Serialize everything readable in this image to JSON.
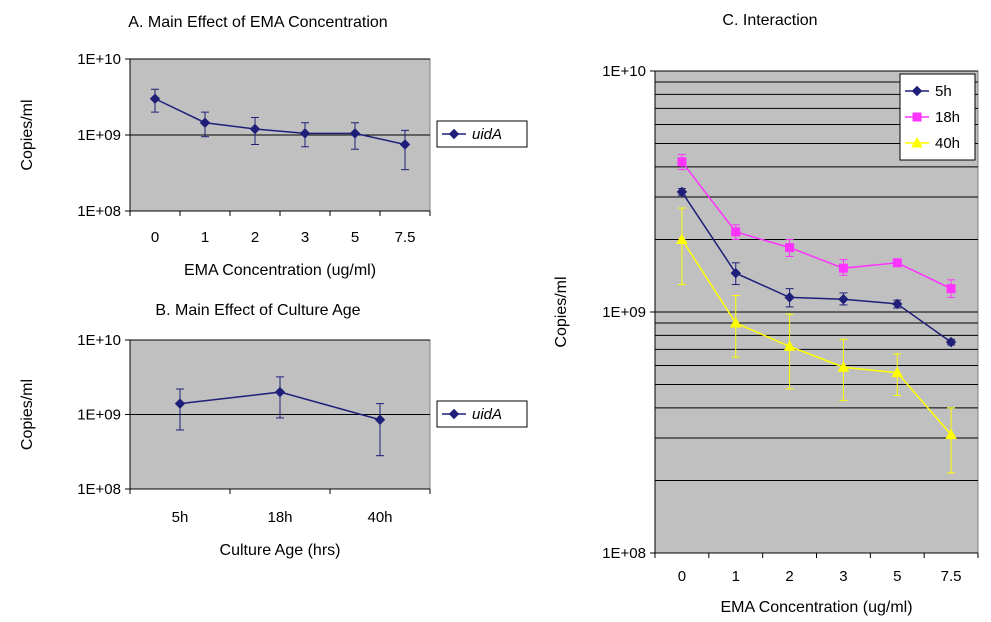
{
  "chart_data": [
    {
      "id": "A",
      "type": "line",
      "title": "A. Main Effect of EMA Concentration",
      "xlabel": "EMA Concentration (ug/ml)",
      "ylabel": "Copies/ml",
      "y_scale": "log",
      "ylim": [
        100000000,
        10000000000
      ],
      "y_ticks": [
        100000000,
        1000000000,
        10000000000
      ],
      "y_tick_labels": [
        "1E+08",
        "1E+09",
        "1E+10"
      ],
      "categories": [
        "0",
        "1",
        "2",
        "3",
        "5",
        "7.5"
      ],
      "grid": "major-y",
      "legend": "right",
      "plot_bg": "#c0c0c0",
      "series": [
        {
          "name": "uidA",
          "color": "#1f1f7a",
          "marker": "diamond",
          "values": [
            3000000000,
            1450000000,
            1200000000,
            1050000000,
            1050000000,
            750000000
          ],
          "err_low": [
            2000000000,
            950000000,
            750000000,
            700000000,
            650000000,
            350000000
          ],
          "err_high": [
            4000000000,
            2000000000,
            1700000000,
            1450000000,
            1450000000,
            1150000000
          ]
        }
      ]
    },
    {
      "id": "B",
      "type": "line",
      "title": "B. Main Effect of Culture Age",
      "xlabel": "Culture Age (hrs)",
      "ylabel": "Copies/ml",
      "y_scale": "log",
      "ylim": [
        100000000,
        10000000000
      ],
      "y_ticks": [
        100000000,
        1000000000,
        10000000000
      ],
      "y_tick_labels": [
        "1E+08",
        "1E+09",
        "1E+10"
      ],
      "categories": [
        "5h",
        "18h",
        "40h"
      ],
      "grid": "major-y",
      "legend": "right",
      "plot_bg": "#c0c0c0",
      "series": [
        {
          "name": "uidA",
          "color": "#1f1f7a",
          "marker": "diamond",
          "values": [
            1400000000,
            2000000000,
            850000000
          ],
          "err_low": [
            620000000,
            900000000,
            280000000
          ],
          "err_high": [
            2200000000,
            3200000000,
            1400000000
          ]
        }
      ]
    },
    {
      "id": "C",
      "type": "line",
      "title": "C. Interaction",
      "xlabel": "EMA Concentration (ug/ml)",
      "ylabel": "Copies/ml",
      "y_scale": "log",
      "ylim": [
        100000000,
        10000000000
      ],
      "y_ticks": [
        100000000,
        1000000000,
        10000000000
      ],
      "y_tick_labels": [
        "1E+08",
        "1E+09",
        "1E+10"
      ],
      "categories": [
        "0",
        "1",
        "2",
        "3",
        "5",
        "7.5"
      ],
      "grid": "minor-log-y",
      "legend": "top-right",
      "plot_bg": "#c0c0c0",
      "series": [
        {
          "name": "5h",
          "color": "#1f1f7a",
          "marker": "diamond",
          "values": [
            3150000000,
            1450000000,
            1150000000,
            1130000000,
            1080000000,
            750000000
          ],
          "err_low": [
            3050000000,
            1300000000,
            1050000000,
            1070000000,
            1040000000,
            730000000
          ],
          "err_high": [
            3250000000,
            1600000000,
            1250000000,
            1200000000,
            1120000000,
            770000000
          ]
        },
        {
          "name": "18h",
          "color": "#ff33ff",
          "marker": "square",
          "values": [
            4200000000,
            2150000000,
            1850000000,
            1520000000,
            1600000000,
            1250000000
          ],
          "err_low": [
            3900000000,
            2000000000,
            1700000000,
            1420000000,
            1550000000,
            1150000000
          ],
          "err_high": [
            4500000000,
            2300000000,
            2000000000,
            1650000000,
            1650000000,
            1360000000
          ]
        },
        {
          "name": "40h",
          "color": "#ffff00",
          "marker": "triangle",
          "values": [
            2000000000,
            900000000,
            720000000,
            590000000,
            560000000,
            310000000
          ],
          "err_low": [
            1300000000,
            650000000,
            480000000,
            430000000,
            450000000,
            215000000
          ],
          "err_high": [
            2700000000,
            1170000000,
            980000000,
            770000000,
            670000000,
            400000000
          ]
        }
      ]
    }
  ]
}
